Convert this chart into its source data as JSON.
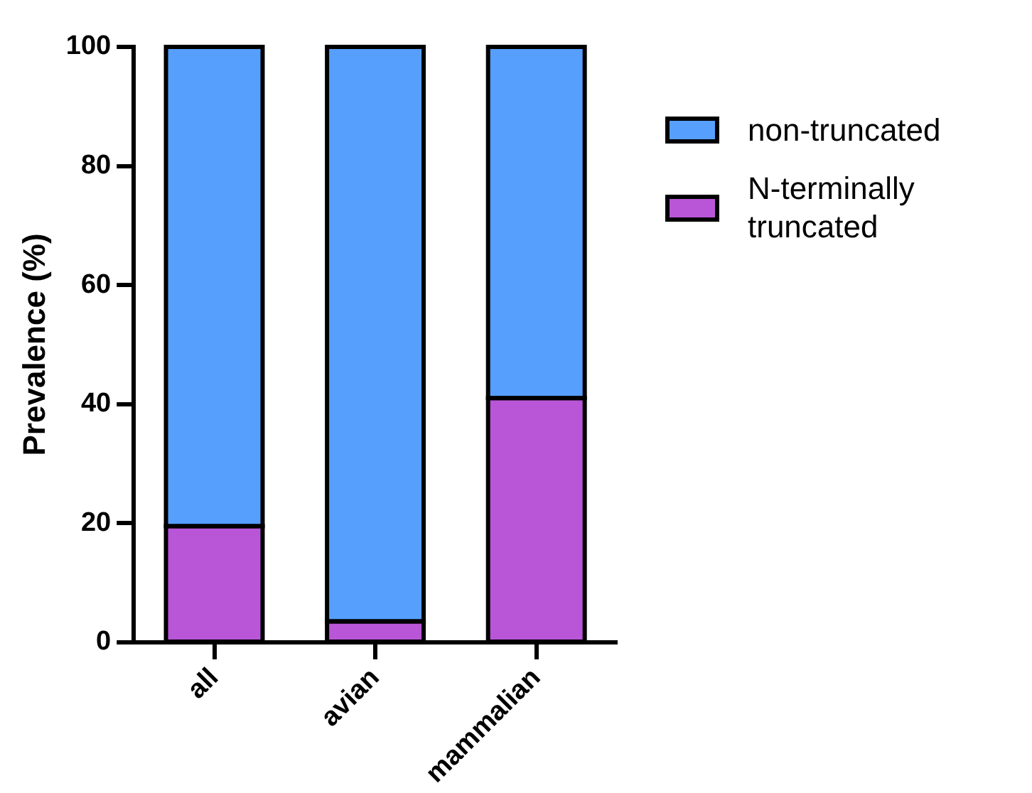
{
  "chart_data": {
    "type": "bar",
    "ylabel": "Prevalence (%)",
    "categories": [
      "all",
      "avian",
      "mammalian"
    ],
    "stacked": true,
    "legend": "top right",
    "series": [
      {
        "name": "N-terminally truncated",
        "color": "#b856d7",
        "values": [
          19.5,
          3.5,
          41
        ]
      },
      {
        "name": "non-truncated",
        "color": "#569ffd",
        "values": [
          80.5,
          96.5,
          59
        ]
      }
    ],
    "ylim": [
      0,
      100
    ],
    "yticks": [
      0,
      20,
      40,
      60,
      80,
      100
    ],
    "grid": false
  }
}
